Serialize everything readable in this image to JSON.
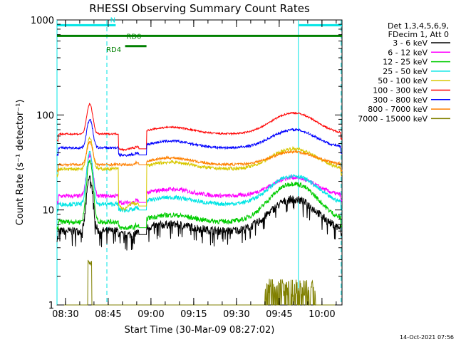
{
  "chart_data": {
    "type": "line",
    "title": "RHESSI Observing Summary Count Rates",
    "xlabel": "Start Time (30-Mar-09 08:27:02)",
    "ylabel": "Count Rate (s⁻¹ detector⁻¹)",
    "y_scale": "log",
    "ylim": [
      1,
      1000
    ],
    "xlim_minutes": [
      0,
      100
    ],
    "x_ticks": [
      {
        "label": "08:30",
        "min": 2.97
      },
      {
        "label": "08:45",
        "min": 17.97
      },
      {
        "label": "09:00",
        "min": 32.97
      },
      {
        "label": "09:15",
        "min": 47.97
      },
      {
        "label": "09:30",
        "min": 62.97
      },
      {
        "label": "09:45",
        "min": 77.97
      },
      {
        "label": "10:00",
        "min": 92.97
      }
    ],
    "y_ticks": [
      {
        "label": "1",
        "value": 1
      },
      {
        "label": "10",
        "value": 10
      },
      {
        "label": "100",
        "value": 100
      },
      {
        "label": "1000",
        "value": 1000
      }
    ],
    "legend_header": [
      "Det 1,3,4,5,6,9,",
      "FDecim 1, Att 0"
    ],
    "legend_position": "right",
    "series": [
      {
        "name": "3 - 6 keV",
        "color": "#000000",
        "base": 6.0,
        "flare": 22,
        "bump": 13,
        "gap": 5.5,
        "noise": 0.1
      },
      {
        "name": "6 - 12 keV",
        "color": "#ff00ff",
        "base": 14.0,
        "flare": 38,
        "bump": 22,
        "gap": 12,
        "noise": 0.05
      },
      {
        "name": "12 - 25 keV",
        "color": "#00cc00",
        "base": 7.5,
        "flare": 33,
        "bump": 19,
        "gap": 6.5,
        "noise": 0.06
      },
      {
        "name": "25 - 50 keV",
        "color": "#00e5e5",
        "base": 11.5,
        "flare": 40,
        "bump": 23,
        "gap": 10,
        "noise": 0.05
      },
      {
        "name": "50 - 100 keV",
        "color": "#d8c800",
        "base": 27.0,
        "flare": 58,
        "bump": 44,
        "gap": 11,
        "noise": 0.04
      },
      {
        "name": "100 - 300 keV",
        "color": "#ff0000",
        "base": 63.0,
        "flare": 130,
        "bump": 105,
        "gap": 44,
        "noise": 0.02
      },
      {
        "name": "300 - 800 keV",
        "color": "#0000ff",
        "base": 45.0,
        "flare": 90,
        "bump": 70,
        "gap": 38,
        "noise": 0.03
      },
      {
        "name": "800 - 7000 keV",
        "color": "#ff8000",
        "base": 30.0,
        "flare": 52,
        "bump": 41,
        "gap": 30,
        "noise": 0.03
      },
      {
        "name": "7000 - 15000 keV",
        "color": "#808000",
        "base": 1.0,
        "flare": 2.9,
        "bump": 1.9,
        "gap": 1.0,
        "noise": 0.0
      }
    ],
    "flags": [
      {
        "label": "N",
        "color": "#00e5e5",
        "level": 880,
        "segments": [
          [
            0,
            20.6
          ],
          [
            84.9,
            100
          ]
        ]
      },
      {
        "label": "RD0",
        "color": "#008000",
        "level": 680,
        "segments": [
          [
            0,
            100
          ]
        ]
      },
      {
        "label": "RD4",
        "color": "#008000",
        "level": 530,
        "segments": [
          [
            23.9,
            31.4
          ]
        ]
      }
    ],
    "markers": [
      {
        "min": 0,
        "style": "solid"
      },
      {
        "min": 17.5,
        "style": "dashed"
      },
      {
        "min": 84.7,
        "style": "solid"
      },
      {
        "min": 99.7,
        "style": "dashed"
      }
    ]
  },
  "footer": {
    "timestamp": "14-Oct-2021 07:56"
  }
}
